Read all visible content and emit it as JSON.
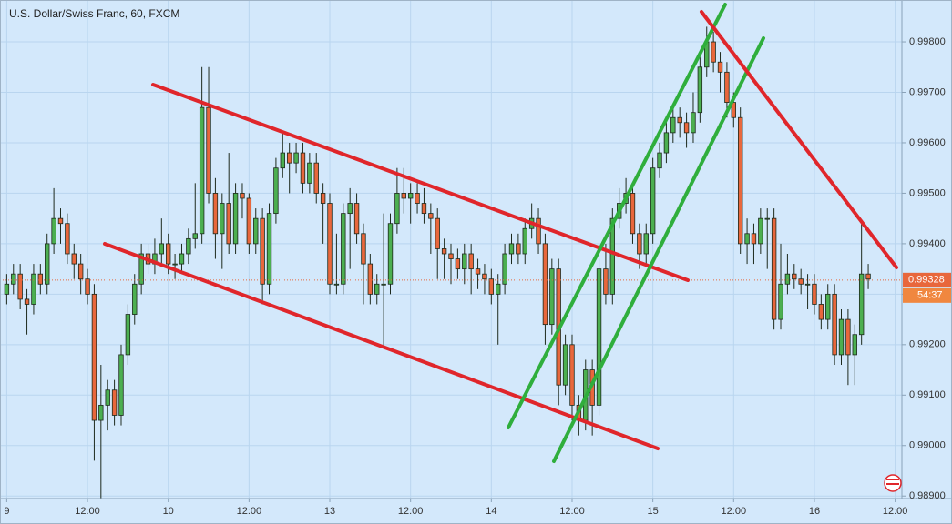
{
  "chart_data": {
    "type": "candlestick",
    "title": "U.S. Dollar/Swiss Franc, 60, FXCM",
    "x": [
      0,
      1,
      2,
      3,
      4,
      5,
      6,
      7,
      8,
      9,
      10,
      11,
      12,
      13,
      14,
      15,
      16,
      17,
      18,
      19,
      20,
      21,
      22,
      23,
      24,
      25,
      26,
      27,
      28,
      29,
      30,
      31,
      32,
      33,
      34,
      35,
      36,
      37,
      38,
      39,
      40,
      41,
      42,
      43,
      44,
      45,
      46,
      47,
      48,
      49,
      50,
      51,
      52,
      53,
      54,
      55,
      56,
      57,
      58,
      59,
      60,
      61,
      62,
      63,
      64,
      65,
      66,
      67,
      68,
      69,
      70,
      71,
      72,
      73,
      74,
      75,
      76,
      77,
      78,
      79,
      80,
      81,
      82,
      83,
      84,
      85,
      86,
      87,
      88,
      89,
      90,
      91,
      92,
      93,
      94,
      95,
      96,
      97,
      98,
      99,
      100,
      101,
      102,
      103,
      104,
      105,
      106,
      107,
      108,
      109,
      110,
      111,
      112,
      113,
      114,
      115,
      116,
      117,
      118,
      119,
      120,
      121,
      122,
      123,
      124,
      125,
      126,
      127,
      128
    ],
    "open": [
      0.993,
      0.9932,
      0.9934,
      0.9929,
      0.9928,
      0.9934,
      0.9932,
      0.994,
      0.9945,
      0.9944,
      0.9938,
      0.9936,
      0.9933,
      0.993,
      0.9905,
      0.9908,
      0.9911,
      0.9906,
      0.9918,
      0.9926,
      0.9932,
      0.9938,
      0.9936,
      0.9938,
      0.994,
      0.9936,
      0.9936,
      0.9938,
      0.9941,
      0.9942,
      0.9967,
      0.995,
      0.9942,
      0.9948,
      0.994,
      0.995,
      0.9949,
      0.994,
      0.9945,
      0.9932,
      0.9946,
      0.9955,
      0.9958,
      0.9956,
      0.9958,
      0.9952,
      0.9956,
      0.995,
      0.9948,
      0.9932,
      0.9932,
      0.9946,
      0.9948,
      0.9942,
      0.9936,
      0.993,
      0.9932,
      0.9932,
      0.9944,
      0.995,
      0.9949,
      0.995,
      0.9948,
      0.9946,
      0.9945,
      0.9939,
      0.9938,
      0.9937,
      0.9935,
      0.9938,
      0.9935,
      0.9934,
      0.9933,
      0.993,
      0.9932,
      0.9938,
      0.994,
      0.9938,
      0.9943,
      0.9945,
      0.994,
      0.9924,
      0.9935,
      0.9912,
      0.992,
      0.9908,
      0.9905,
      0.9915,
      0.9908,
      0.9935,
      0.993,
      0.9945,
      0.9948,
      0.995,
      0.9942,
      0.9938,
      0.9942,
      0.9955,
      0.9958,
      0.9962,
      0.9965,
      0.9964,
      0.9962,
      0.9966,
      0.9975,
      0.998,
      0.9976,
      0.9974,
      0.9968,
      0.9965,
      0.994,
      0.9942,
      0.994,
      0.9945,
      0.9945,
      0.9925,
      0.9932,
      0.9934,
      0.9933,
      0.9932,
      0.9932,
      0.9928,
      0.9925,
      0.993,
      0.9918,
      0.9925,
      0.9918,
      0.9922,
      0.9934
    ],
    "high": [
      0.9934,
      0.9936,
      0.9936,
      0.9931,
      0.9936,
      0.9936,
      0.9942,
      0.9951,
      0.9947,
      0.9946,
      0.994,
      0.9938,
      0.9935,
      0.9932,
      0.9916,
      0.9913,
      0.9913,
      0.992,
      0.9928,
      0.9934,
      0.994,
      0.994,
      0.9941,
      0.9945,
      0.9942,
      0.9938,
      0.994,
      0.9943,
      0.9952,
      0.9975,
      0.9975,
      0.9953,
      0.995,
      0.9958,
      0.9952,
      0.9952,
      0.995,
      0.9947,
      0.9947,
      0.9948,
      0.9957,
      0.9962,
      0.996,
      0.996,
      0.996,
      0.9958,
      0.9958,
      0.9952,
      0.995,
      0.9942,
      0.9948,
      0.9951,
      0.995,
      0.9944,
      0.9938,
      0.9934,
      0.9946,
      0.9946,
      0.9955,
      0.9955,
      0.9952,
      0.9952,
      0.9951,
      0.9948,
      0.9947,
      0.9941,
      0.994,
      0.9939,
      0.994,
      0.994,
      0.9937,
      0.9936,
      0.9935,
      0.9934,
      0.994,
      0.9942,
      0.9942,
      0.9945,
      0.9948,
      0.9947,
      0.9942,
      0.9937,
      0.9937,
      0.9922,
      0.9922,
      0.991,
      0.9917,
      0.9917,
      0.9937,
      0.994,
      0.9947,
      0.9951,
      0.9953,
      0.9952,
      0.9944,
      0.9944,
      0.9957,
      0.996,
      0.9965,
      0.9967,
      0.9967,
      0.9966,
      0.997,
      0.9977,
      0.9983,
      0.9982,
      0.9978,
      0.9976,
      0.997,
      0.9967,
      0.9945,
      0.9944,
      0.9947,
      0.9947,
      0.9947,
      0.994,
      0.9938,
      0.9936,
      0.9935,
      0.9934,
      0.9934,
      0.993,
      0.9932,
      0.9932,
      0.9927,
      0.9927,
      0.9924,
      0.9944,
      0.9936
    ],
    "low": [
      0.9928,
      0.993,
      0.9927,
      0.9922,
      0.9926,
      0.993,
      0.993,
      0.9938,
      0.994,
      0.9936,
      0.9933,
      0.993,
      0.9928,
      0.9897,
      0.9885,
      0.9903,
      0.9904,
      0.9904,
      0.9916,
      0.9924,
      0.993,
      0.9934,
      0.9934,
      0.9936,
      0.9934,
      0.9933,
      0.9934,
      0.9936,
      0.9939,
      0.994,
      0.9948,
      0.9937,
      0.9935,
      0.9938,
      0.9938,
      0.9945,
      0.9938,
      0.9938,
      0.9928,
      0.993,
      0.9944,
      0.9953,
      0.995,
      0.9954,
      0.995,
      0.995,
      0.9948,
      0.994,
      0.993,
      0.993,
      0.993,
      0.9935,
      0.994,
      0.9928,
      0.9928,
      0.9928,
      0.992,
      0.993,
      0.9942,
      0.9946,
      0.9944,
      0.9946,
      0.9944,
      0.9938,
      0.9933,
      0.9933,
      0.9932,
      0.9933,
      0.9932,
      0.993,
      0.9931,
      0.993,
      0.9928,
      0.992,
      0.993,
      0.9936,
      0.9936,
      0.9936,
      0.9941,
      0.9938,
      0.992,
      0.9922,
      0.9908,
      0.991,
      0.9905,
      0.9902,
      0.9903,
      0.9902,
      0.9906,
      0.9928,
      0.9928,
      0.9943,
      0.9946,
      0.994,
      0.9935,
      0.9936,
      0.994,
      0.9953,
      0.9956,
      0.996,
      0.9961,
      0.9959,
      0.996,
      0.9964,
      0.9973,
      0.9974,
      0.997,
      0.9965,
      0.9963,
      0.9938,
      0.9936,
      0.9936,
      0.9938,
      0.9935,
      0.9923,
      0.9923,
      0.993,
      0.9931,
      0.993,
      0.9927,
      0.9926,
      0.9923,
      0.9923,
      0.9916,
      0.9916,
      0.9912,
      0.9912,
      0.992,
      0.9931
    ],
    "close": [
      0.9932,
      0.9934,
      0.9929,
      0.9928,
      0.9934,
      0.9932,
      0.994,
      0.9945,
      0.9944,
      0.9938,
      0.9936,
      0.9933,
      0.993,
      0.9905,
      0.9908,
      0.9911,
      0.9906,
      0.9918,
      0.9926,
      0.9932,
      0.9938,
      0.9936,
      0.9938,
      0.994,
      0.9936,
      0.9936,
      0.9938,
      0.9941,
      0.9942,
      0.9967,
      0.995,
      0.9942,
      0.9948,
      0.994,
      0.995,
      0.9949,
      0.994,
      0.9945,
      0.9932,
      0.9946,
      0.9955,
      0.9958,
      0.9956,
      0.9958,
      0.9952,
      0.9956,
      0.995,
      0.9948,
      0.9932,
      0.9932,
      0.9946,
      0.9948,
      0.9942,
      0.9936,
      0.993,
      0.9932,
      0.9932,
      0.9944,
      0.995,
      0.9949,
      0.995,
      0.9948,
      0.9946,
      0.9945,
      0.9939,
      0.9938,
      0.9937,
      0.9935,
      0.9938,
      0.9935,
      0.9934,
      0.9933,
      0.993,
      0.9932,
      0.9938,
      0.994,
      0.9938,
      0.9943,
      0.9945,
      0.994,
      0.9924,
      0.9935,
      0.9912,
      0.992,
      0.9908,
      0.9905,
      0.9915,
      0.9908,
      0.9935,
      0.993,
      0.9945,
      0.9948,
      0.995,
      0.9942,
      0.9938,
      0.9942,
      0.9955,
      0.9958,
      0.9962,
      0.9965,
      0.9964,
      0.9962,
      0.9966,
      0.9975,
      0.998,
      0.9976,
      0.9974,
      0.9968,
      0.9965,
      0.994,
      0.9942,
      0.994,
      0.9945,
      0.9945,
      0.9925,
      0.9932,
      0.9934,
      0.9933,
      0.9932,
      0.9932,
      0.9928,
      0.9925,
      0.993,
      0.9918,
      0.9925,
      0.9918,
      0.9922,
      0.9934,
      0.9933
    ],
    "up_color": "#4caf50",
    "down_color": "#e8673c",
    "xlim": [
      -1,
      133
    ],
    "xticks": [
      {
        "value": 0,
        "label": "9"
      },
      {
        "value": 12,
        "label": "12:00"
      },
      {
        "value": 24,
        "label": "10"
      },
      {
        "value": 36,
        "label": "12:00"
      },
      {
        "value": 48,
        "label": "13"
      },
      {
        "value": 60,
        "label": "12:00"
      },
      {
        "value": 72,
        "label": "14"
      },
      {
        "value": 84,
        "label": "12:00"
      },
      {
        "value": 96,
        "label": "15"
      },
      {
        "value": 108,
        "label": "12:00"
      },
      {
        "value": 120,
        "label": "16"
      },
      {
        "value": 132,
        "label": "12:00"
      }
    ],
    "ylim": [
      0.98895,
      0.99883
    ],
    "yticks": [
      {
        "value": 0.989,
        "label": "0.98900"
      },
      {
        "value": 0.99,
        "label": "0.99000"
      },
      {
        "value": 0.991,
        "label": "0.99100"
      },
      {
        "value": 0.992,
        "label": "0.99200"
      },
      {
        "value": 0.993,
        "label": "0.99300"
      },
      {
        "value": 0.994,
        "label": "0.99400"
      },
      {
        "value": 0.995,
        "label": "0.99500"
      },
      {
        "value": 0.996,
        "label": "0.99600"
      },
      {
        "value": 0.997,
        "label": "0.99700"
      },
      {
        "value": 0.998,
        "label": "0.99800"
      }
    ],
    "grid": true,
    "last_price": 0.99328,
    "countdown": "54:37"
  }
}
